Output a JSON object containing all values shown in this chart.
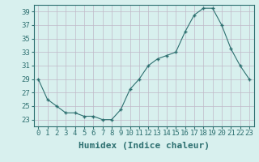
{
  "xlabel": "Humidex (Indice chaleur)",
  "ylabel": "",
  "x": [
    0,
    1,
    2,
    3,
    4,
    5,
    6,
    7,
    8,
    9,
    10,
    11,
    12,
    13,
    14,
    15,
    16,
    17,
    18,
    19,
    20,
    21,
    22,
    23
  ],
  "y": [
    29,
    26,
    25,
    24,
    24,
    23.5,
    23.5,
    23,
    23,
    24.5,
    27.5,
    29,
    31,
    32,
    32.5,
    33,
    36,
    38.5,
    39.5,
    39.5,
    37,
    33.5,
    31,
    29
  ],
  "ylim": [
    22,
    40
  ],
  "yticks": [
    23,
    25,
    27,
    29,
    31,
    33,
    35,
    37,
    39
  ],
  "line_color": "#2d7070",
  "marker": "+",
  "bg_color": "#d8f0ee",
  "grid_color": "#c0b8c8",
  "label_color": "#2d7070",
  "axis_fontsize": 6.5,
  "label_fontsize": 8
}
